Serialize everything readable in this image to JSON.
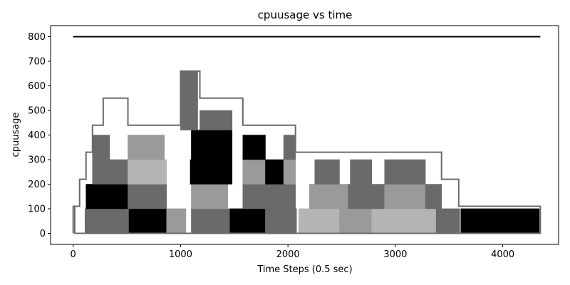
{
  "chart_data": {
    "type": "area",
    "title": "cpuusage vs time",
    "xlabel": "Time Steps (0.5 sec)",
    "ylabel": "cpuusage",
    "xlim": [
      -210,
      4520
    ],
    "ylim": [
      -45,
      845
    ],
    "xticks": [
      0,
      1000,
      2000,
      3000,
      4000
    ],
    "yticks": [
      0,
      100,
      200,
      300,
      400,
      500,
      600,
      700,
      800
    ],
    "grid": false,
    "legend": "none",
    "colors": {
      "black": "#000000",
      "dark": "#6a6a6a",
      "mid": "#9a9a9a",
      "light": "#b4b4b4"
    },
    "series": [
      {
        "values": [
          [
            0,
            800
          ],
          [
            4350,
            800
          ]
        ],
        "style": "line",
        "color": "#000000"
      },
      {
        "values": [
          [
            0,
            0
          ],
          [
            0,
            110
          ],
          [
            15,
            110
          ],
          [
            15,
            0
          ],
          [
            4350,
            0
          ],
          [
            4350,
            110
          ],
          [
            3590,
            110
          ],
          [
            3590,
            220
          ],
          [
            3430,
            220
          ],
          [
            3430,
            330
          ],
          [
            3280,
            330
          ],
          [
            3280,
            330
          ],
          [
            2070,
            330
          ],
          [
            2070,
            440
          ],
          [
            1580,
            440
          ],
          [
            1580,
            550
          ],
          [
            1180,
            550
          ],
          [
            1180,
            660
          ],
          [
            1000,
            660
          ],
          [
            1000,
            440
          ],
          [
            510,
            440
          ],
          [
            510,
            550
          ],
          [
            280,
            550
          ],
          [
            280,
            440
          ],
          [
            180,
            440
          ],
          [
            180,
            330
          ],
          [
            120,
            330
          ],
          [
            120,
            220
          ],
          [
            60,
            220
          ],
          [
            60,
            110
          ],
          [
            0,
            110
          ]
        ],
        "style": "outline",
        "color": "#6a6a6a"
      },
      {
        "values": [
          [
            110,
            0
          ],
          [
            110,
            100
          ],
          [
            520,
            100
          ],
          [
            520,
            0
          ]
        ],
        "style": "area",
        "color": "#6a6a6a"
      },
      {
        "values": [
          [
            520,
            0
          ],
          [
            520,
            100
          ],
          [
            870,
            100
          ],
          [
            870,
            0
          ]
        ],
        "style": "area",
        "color": "#000000"
      },
      {
        "values": [
          [
            870,
            0
          ],
          [
            870,
            100
          ],
          [
            1050,
            100
          ],
          [
            1050,
            0
          ]
        ],
        "style": "area",
        "color": "#9a9a9a"
      },
      {
        "values": [
          [
            1100,
            0
          ],
          [
            1100,
            100
          ],
          [
            1460,
            100
          ],
          [
            1460,
            0
          ]
        ],
        "style": "area",
        "color": "#6a6a6a"
      },
      {
        "values": [
          [
            1460,
            0
          ],
          [
            1460,
            100
          ],
          [
            1790,
            100
          ],
          [
            1790,
            0
          ]
        ],
        "style": "area",
        "color": "#000000"
      },
      {
        "values": [
          [
            1790,
            0
          ],
          [
            1790,
            100
          ],
          [
            2080,
            100
          ],
          [
            2080,
            0
          ]
        ],
        "style": "area",
        "color": "#6a6a6a"
      },
      {
        "values": [
          [
            2100,
            0
          ],
          [
            2100,
            100
          ],
          [
            2480,
            100
          ],
          [
            2480,
            0
          ]
        ],
        "style": "area",
        "color": "#b4b4b4"
      },
      {
        "values": [
          [
            2480,
            0
          ],
          [
            2480,
            100
          ],
          [
            2780,
            100
          ],
          [
            2780,
            0
          ]
        ],
        "style": "area",
        "color": "#9a9a9a"
      },
      {
        "values": [
          [
            2780,
            0
          ],
          [
            2780,
            100
          ],
          [
            3380,
            100
          ],
          [
            3380,
            0
          ]
        ],
        "style": "area",
        "color": "#b4b4b4"
      },
      {
        "values": [
          [
            3380,
            0
          ],
          [
            3380,
            100
          ],
          [
            3600,
            100
          ],
          [
            3600,
            0
          ]
        ],
        "style": "area",
        "color": "#6a6a6a"
      },
      {
        "values": [
          [
            3610,
            0
          ],
          [
            3610,
            100
          ],
          [
            4340,
            100
          ],
          [
            4340,
            0
          ]
        ],
        "style": "area",
        "color": "#000000"
      },
      {
        "values": [
          [
            120,
            100
          ],
          [
            120,
            200
          ],
          [
            510,
            200
          ],
          [
            510,
            100
          ]
        ],
        "style": "area",
        "color": "#000000"
      },
      {
        "values": [
          [
            510,
            100
          ],
          [
            510,
            200
          ],
          [
            870,
            200
          ],
          [
            870,
            100
          ]
        ],
        "style": "area",
        "color": "#6a6a6a"
      },
      {
        "values": [
          [
            1100,
            100
          ],
          [
            1100,
            200
          ],
          [
            1440,
            200
          ],
          [
            1440,
            100
          ]
        ],
        "style": "area",
        "color": "#9a9a9a"
      },
      {
        "values": [
          [
            1580,
            100
          ],
          [
            1580,
            200
          ],
          [
            2070,
            200
          ],
          [
            2070,
            100
          ]
        ],
        "style": "area",
        "color": "#6a6a6a"
      },
      {
        "values": [
          [
            2200,
            100
          ],
          [
            2200,
            200
          ],
          [
            2560,
            200
          ],
          [
            2560,
            100
          ]
        ],
        "style": "area",
        "color": "#9a9a9a"
      },
      {
        "values": [
          [
            2560,
            100
          ],
          [
            2560,
            200
          ],
          [
            2900,
            200
          ],
          [
            2900,
            100
          ]
        ],
        "style": "area",
        "color": "#6a6a6a"
      },
      {
        "values": [
          [
            2900,
            100
          ],
          [
            2900,
            200
          ],
          [
            3280,
            200
          ],
          [
            3280,
            100
          ]
        ],
        "style": "area",
        "color": "#9a9a9a"
      },
      {
        "values": [
          [
            3280,
            100
          ],
          [
            3280,
            200
          ],
          [
            3430,
            200
          ],
          [
            3430,
            100
          ]
        ],
        "style": "area",
        "color": "#6a6a6a"
      },
      {
        "values": [
          [
            180,
            200
          ],
          [
            180,
            300
          ],
          [
            510,
            300
          ],
          [
            510,
            200
          ]
        ],
        "style": "area",
        "color": "#6a6a6a"
      },
      {
        "values": [
          [
            510,
            200
          ],
          [
            510,
            300
          ],
          [
            870,
            300
          ],
          [
            870,
            200
          ]
        ],
        "style": "area",
        "color": "#b4b4b4"
      },
      {
        "values": [
          [
            1090,
            200
          ],
          [
            1090,
            300
          ],
          [
            1480,
            300
          ],
          [
            1480,
            200
          ]
        ],
        "style": "area",
        "color": "#000000"
      },
      {
        "values": [
          [
            1580,
            200
          ],
          [
            1580,
            300
          ],
          [
            1790,
            300
          ],
          [
            1790,
            200
          ]
        ],
        "style": "area",
        "color": "#9a9a9a"
      },
      {
        "values": [
          [
            1790,
            200
          ],
          [
            1790,
            300
          ],
          [
            1960,
            300
          ],
          [
            1960,
            200
          ]
        ],
        "style": "area",
        "color": "#000000"
      },
      {
        "values": [
          [
            1960,
            200
          ],
          [
            1960,
            300
          ],
          [
            2070,
            300
          ],
          [
            2070,
            200
          ]
        ],
        "style": "area",
        "color": "#9a9a9a"
      },
      {
        "values": [
          [
            2250,
            200
          ],
          [
            2250,
            300
          ],
          [
            2480,
            300
          ],
          [
            2480,
            200
          ]
        ],
        "style": "area",
        "color": "#6a6a6a"
      },
      {
        "values": [
          [
            2580,
            200
          ],
          [
            2580,
            300
          ],
          [
            2780,
            300
          ],
          [
            2780,
            200
          ]
        ],
        "style": "area",
        "color": "#6a6a6a"
      },
      {
        "values": [
          [
            2900,
            200
          ],
          [
            2900,
            300
          ],
          [
            3280,
            300
          ],
          [
            3280,
            200
          ]
        ],
        "style": "area",
        "color": "#6a6a6a"
      },
      {
        "values": [
          [
            180,
            300
          ],
          [
            180,
            400
          ],
          [
            340,
            400
          ],
          [
            340,
            300
          ]
        ],
        "style": "area",
        "color": "#6a6a6a"
      },
      {
        "values": [
          [
            510,
            300
          ],
          [
            510,
            400
          ],
          [
            850,
            400
          ],
          [
            850,
            300
          ]
        ],
        "style": "area",
        "color": "#9a9a9a"
      },
      {
        "values": [
          [
            1100,
            300
          ],
          [
            1100,
            420
          ],
          [
            1480,
            420
          ],
          [
            1480,
            300
          ]
        ],
        "style": "area",
        "color": "#000000"
      },
      {
        "values": [
          [
            1580,
            300
          ],
          [
            1580,
            400
          ],
          [
            1790,
            400
          ],
          [
            1790,
            300
          ]
        ],
        "style": "area",
        "color": "#000000"
      },
      {
        "values": [
          [
            1960,
            300
          ],
          [
            1960,
            400
          ],
          [
            2070,
            400
          ],
          [
            2070,
            300
          ]
        ],
        "style": "area",
        "color": "#6a6a6a"
      },
      {
        "values": [
          [
            1180,
            420
          ],
          [
            1180,
            500
          ],
          [
            1480,
            500
          ],
          [
            1480,
            420
          ]
        ],
        "style": "area",
        "color": "#6a6a6a"
      },
      {
        "values": [
          [
            1000,
            420
          ],
          [
            1000,
            660
          ],
          [
            1160,
            660
          ],
          [
            1160,
            420
          ]
        ],
        "style": "area",
        "color": "#6a6a6a"
      }
    ]
  }
}
